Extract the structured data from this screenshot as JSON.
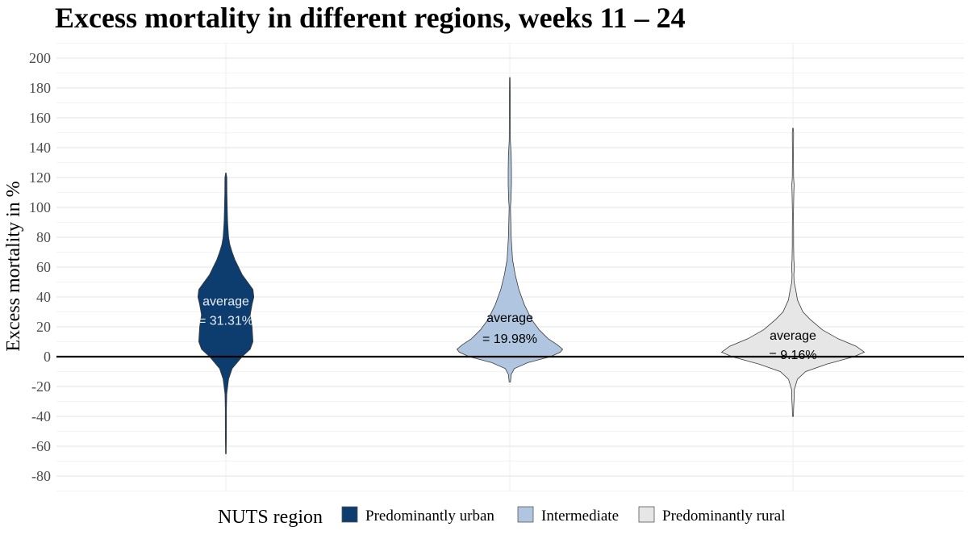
{
  "chart_data": {
    "type": "violin",
    "title": "Excess mortality in different regions, weeks 11 – 24",
    "ylabel": "Excess mortality in %",
    "xlabel": "",
    "ylim": [
      -90,
      210
    ],
    "y_ticks": [
      -80,
      -60,
      -40,
      -20,
      0,
      20,
      40,
      60,
      80,
      100,
      120,
      140,
      160,
      180,
      200
    ],
    "grid": true,
    "zero_line": true,
    "legend": {
      "title": "NUTS region",
      "placement": "bottom"
    },
    "series": [
      {
        "name": "Predominantly urban",
        "color": "#0d3d6e",
        "annotation_line1": "average",
        "annotation_line2": "= 31.31%",
        "annotation_y": [
          37,
          24
        ],
        "annotation_color": "#e8eef6",
        "min": -65,
        "max": 123,
        "density": [
          [
            -65,
            0.8
          ],
          [
            -55,
            1.0
          ],
          [
            -45,
            1.2
          ],
          [
            -35,
            1.2
          ],
          [
            -25,
            2.0
          ],
          [
            -15,
            6
          ],
          [
            -8,
            14
          ],
          [
            0,
            36
          ],
          [
            5,
            54
          ],
          [
            10,
            60
          ],
          [
            20,
            58
          ],
          [
            28,
            54
          ],
          [
            35,
            58
          ],
          [
            40,
            62
          ],
          [
            45,
            60
          ],
          [
            50,
            48
          ],
          [
            55,
            36
          ],
          [
            60,
            28
          ],
          [
            65,
            20
          ],
          [
            70,
            14
          ],
          [
            75,
            9
          ],
          [
            80,
            6
          ],
          [
            90,
            4
          ],
          [
            100,
            3
          ],
          [
            110,
            2.4
          ],
          [
            120,
            2.2
          ],
          [
            123,
            0.5
          ]
        ]
      },
      {
        "name": "Intermediate",
        "color": "#b0c6e0",
        "annotation_line1": "average",
        "annotation_line2": "= 19.98%",
        "annotation_y": [
          26,
          12
        ],
        "annotation_color": "#000000",
        "min": -17,
        "max": 187,
        "density": [
          [
            -17,
            1.5
          ],
          [
            -12,
            3
          ],
          [
            -8,
            10
          ],
          [
            -4,
            40
          ],
          [
            0,
            90
          ],
          [
            3,
            112
          ],
          [
            5,
            117
          ],
          [
            8,
            105
          ],
          [
            12,
            85
          ],
          [
            18,
            65
          ],
          [
            25,
            48
          ],
          [
            35,
            32
          ],
          [
            45,
            20
          ],
          [
            55,
            12
          ],
          [
            65,
            6
          ],
          [
            80,
            3
          ],
          [
            100,
            1.5
          ],
          [
            105,
            2.5
          ],
          [
            115,
            3.5
          ],
          [
            125,
            3.5
          ],
          [
            135,
            3
          ],
          [
            145,
            1.2
          ],
          [
            160,
            1
          ],
          [
            175,
            1
          ],
          [
            187,
            0.5
          ]
        ]
      },
      {
        "name": "Predominantly rural",
        "color": "#e6e6e6",
        "annotation_line1": "average",
        "annotation_line2": "= 9.16%",
        "annotation_y": [
          14,
          1
        ],
        "annotation_color": "#000000",
        "min": -40,
        "max": 153,
        "density": [
          [
            -40,
            1
          ],
          [
            -35,
            1.5
          ],
          [
            -28,
            2.5
          ],
          [
            -22,
            3
          ],
          [
            -15,
            10
          ],
          [
            -10,
            28
          ],
          [
            -5,
            75
          ],
          [
            0,
            135
          ],
          [
            3,
            158
          ],
          [
            7,
            140
          ],
          [
            12,
            100
          ],
          [
            18,
            65
          ],
          [
            25,
            38
          ],
          [
            30,
            22
          ],
          [
            38,
            10
          ],
          [
            45,
            6
          ],
          [
            50,
            2.5
          ],
          [
            55,
            2
          ],
          [
            60,
            3
          ],
          [
            65,
            2
          ],
          [
            75,
            1.5
          ],
          [
            85,
            1.5
          ],
          [
            95,
            1
          ],
          [
            110,
            2
          ],
          [
            115,
            2.5
          ],
          [
            120,
            1.5
          ],
          [
            135,
            1
          ],
          [
            150,
            1.5
          ],
          [
            153,
            0.5
          ]
        ]
      }
    ]
  }
}
